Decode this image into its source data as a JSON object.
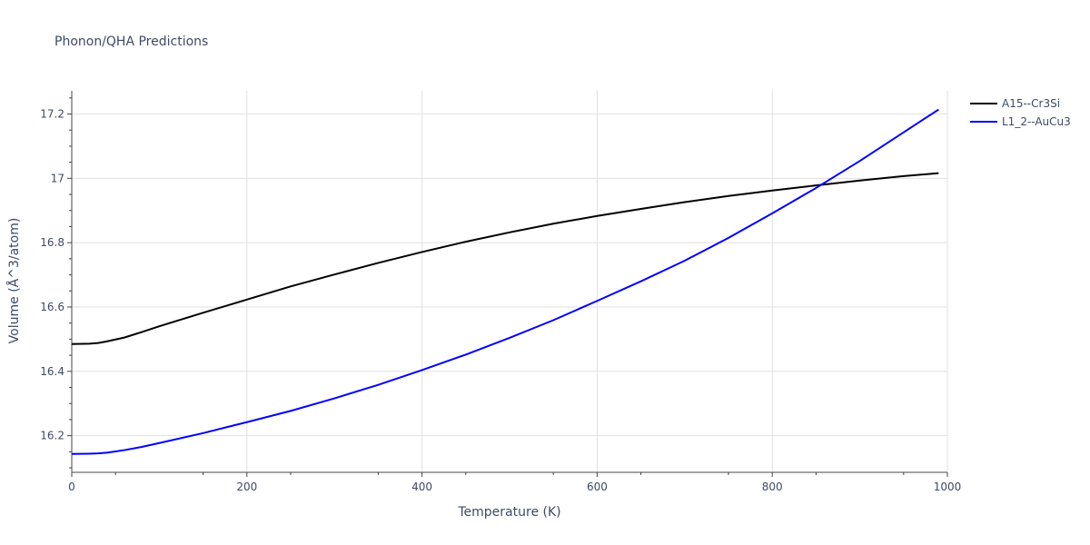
{
  "chart_data": {
    "type": "line",
    "title": "Phonon/QHA Predictions",
    "xlabel": "Temperature (K)",
    "ylabel": "Volume (Å^3/atom)",
    "xlim": [
      0,
      1000
    ],
    "ylim": [
      16.086,
      17.272
    ],
    "xticks": [
      0,
      200,
      400,
      600,
      800,
      1000
    ],
    "xtick_labels": [
      "0",
      "200",
      "400",
      "600",
      "800",
      "1000"
    ],
    "yticks": [
      16.2,
      16.4,
      16.6,
      16.8,
      17.0,
      17.2
    ],
    "ytick_labels": [
      "16.2",
      "16.4",
      "16.6",
      "16.8",
      "17",
      "17.2"
    ],
    "grid": true,
    "legend_position": "top-right",
    "series": [
      {
        "name": "A15--Cr3Si",
        "color": "#000000",
        "x": [
          0,
          20,
          30,
          40,
          60,
          80,
          100,
          150,
          200,
          250,
          300,
          350,
          400,
          450,
          500,
          550,
          600,
          650,
          700,
          750,
          800,
          850,
          900,
          950,
          990
        ],
        "y": [
          16.485,
          16.486,
          16.488,
          16.493,
          16.505,
          16.522,
          16.54,
          16.582,
          16.623,
          16.664,
          16.701,
          16.737,
          16.771,
          16.803,
          16.832,
          16.859,
          16.883,
          16.905,
          16.926,
          16.945,
          16.962,
          16.978,
          16.993,
          17.007,
          17.016
        ]
      },
      {
        "name": "L1_2--AuCu3",
        "color": "#0000ff",
        "x": [
          0,
          20,
          30,
          40,
          60,
          80,
          100,
          150,
          200,
          250,
          300,
          350,
          400,
          450,
          500,
          550,
          600,
          650,
          700,
          750,
          800,
          850,
          900,
          950,
          990
        ],
        "y": [
          16.143,
          16.144,
          16.145,
          16.147,
          16.155,
          16.165,
          16.177,
          16.208,
          16.242,
          16.277,
          16.316,
          16.358,
          16.404,
          16.452,
          16.504,
          16.559,
          16.619,
          16.68,
          16.744,
          16.815,
          16.891,
          16.97,
          17.054,
          17.143,
          17.214
        ]
      }
    ]
  }
}
